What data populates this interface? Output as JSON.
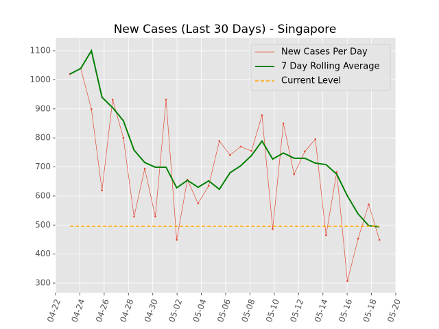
{
  "chart_data": {
    "type": "line",
    "title": "New Cases (Last 30 Days) - Singapore",
    "x": [
      1.19,
      2.07,
      2.95,
      3.82,
      4.7,
      5.58,
      6.46,
      7.34,
      8.21,
      9.09,
      9.97,
      10.85,
      11.73,
      12.6,
      13.48,
      14.36,
      15.24,
      16.12,
      16.99,
      17.87,
      18.75,
      19.63,
      20.51,
      21.38,
      22.26,
      23.14,
      24.02,
      24.9,
      25.77,
      26.65
    ],
    "series": [
      {
        "name": "New Cases Per Day",
        "color": "#e24a33",
        "width": 0.7,
        "markers": true,
        "values": [
          1020,
          1039,
          899,
          619,
          932,
          800,
          529,
          694,
          529,
          932,
          449,
          656,
          574,
          635,
          789,
          741,
          770,
          755,
          878,
          486,
          850,
          675,
          753,
          796,
          465,
          682,
          307,
          453,
          571,
          449
        ]
      },
      {
        "name": "7 Day Rolling Average",
        "color": "#008000",
        "width": 2,
        "values": [
          1020,
          1039,
          1100,
          940,
          904,
          859,
          758,
          715,
          699,
          699,
          628,
          654,
          630,
          652,
          623,
          680,
          704,
          739,
          789,
          727,
          748,
          730,
          730,
          713,
          708,
          675,
          600,
          538,
          498,
          494
        ]
      }
    ],
    "current_level": {
      "name": "Current Level",
      "color": "#ffa500",
      "value": 496
    },
    "xlim": [
      0,
      28
    ],
    "xticks": [
      {
        "value": 0,
        "label": "04-22"
      },
      {
        "value": 2,
        "label": "04-24"
      },
      {
        "value": 4,
        "label": "04-26"
      },
      {
        "value": 6,
        "label": "04-28"
      },
      {
        "value": 8,
        "label": "04-30"
      },
      {
        "value": 10,
        "label": "05-02"
      },
      {
        "value": 12,
        "label": "05-04"
      },
      {
        "value": 14,
        "label": "05-06"
      },
      {
        "value": 16,
        "label": "05-08"
      },
      {
        "value": 18,
        "label": "05-10"
      },
      {
        "value": 20,
        "label": "05-12"
      },
      {
        "value": 22,
        "label": "05-14"
      },
      {
        "value": 24,
        "label": "05-16"
      },
      {
        "value": 26,
        "label": "05-18"
      },
      {
        "value": 28,
        "label": "05-20"
      }
    ],
    "ylim": [
      267,
      1145
    ],
    "yticks": [
      300,
      400,
      500,
      600,
      700,
      800,
      900,
      1000,
      1100
    ],
    "grid": true,
    "legend": "upper right"
  }
}
